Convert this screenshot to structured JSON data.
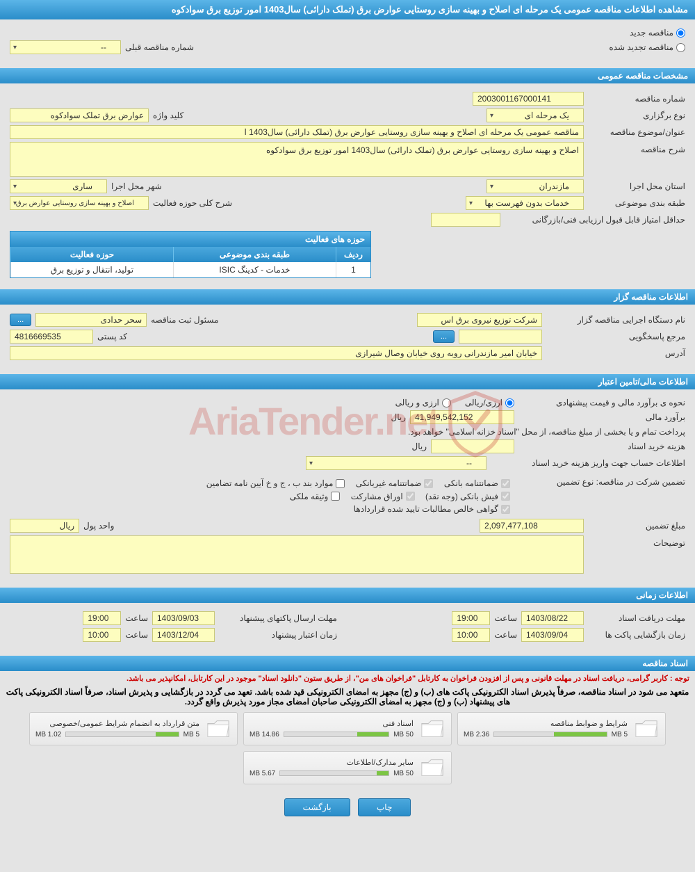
{
  "header": {
    "title": "مشاهده اطلاعات مناقصه عمومی یک مرحله ای اصلاح و بهینه سازی روستایی عوارض برق (تملک دارائی) سال1403 امور توزیع برق سوادکوه"
  },
  "status": {
    "new_label": "مناقصه جدید",
    "renewed_label": "مناقصه تجدید شده",
    "prev_number_label": "شماره مناقصه قبلی",
    "prev_number_value": "--"
  },
  "general": {
    "section_title": "مشخصات مناقصه عمومی",
    "number_label": "شماره مناقصه",
    "number_value": "2003001167000141",
    "type_label": "نوع برگزاری",
    "type_value": "یک مرحله ای",
    "keyword_label": "کلید واژه",
    "keyword_value": "عوارض برق تملک سوادکوه",
    "subject_label": "عنوان/موضوع مناقصه",
    "subject_value": "مناقصه عمومی یک مرحله ای اصلاح و بهینه سازی روستایی عوارض برق (تملک دارائی)  سال1403 ا",
    "desc_label": "شرح مناقصه",
    "desc_value": "اصلاح و بهینه سازی روستایی عوارض برق (تملک دارائی)  سال1403 امور توزیع برق سوادکوه",
    "province_label": "استان محل اجرا",
    "province_value": "مازندران",
    "city_label": "شهر محل اجرا",
    "city_value": "ساری",
    "category_label": "طبقه بندی موضوعی",
    "category_value": "خدمات بدون فهرست بها",
    "scope_label": "شرح کلی حوزه فعالیت",
    "scope_value": "اصلاح و بهینه سازی روستایی عوارض برق",
    "min_score_label": "حداقل امتیاز قابل قبول ارزیابی فنی/بازرگانی",
    "min_score_value": ""
  },
  "activity_table": {
    "title": "حوزه های فعالیت",
    "col_idx": "ردیف",
    "col_cat": "طبقه بندی موضوعی",
    "col_act": "حوزه فعالیت",
    "rows": [
      {
        "idx": "1",
        "cat": "خدمات - کدینگ ISIC",
        "act": "تولید، انتقال و توزیع برق"
      }
    ]
  },
  "tenderer": {
    "section_title": "اطلاعات مناقصه گزار",
    "org_label": "نام دستگاه اجرایی مناقصه گزار",
    "org_value": "شرکت توزیع نیروی برق اس",
    "officer_label": "مسئول ثبت مناقصه",
    "officer_value": "سحر حدادی",
    "more_btn": "...",
    "ref_label": "مرجع پاسخگویی",
    "ref_value": "",
    "postal_label": "کد پستی",
    "postal_value": "4816669535",
    "address_label": "آدرس",
    "address_value": "خیابان امیر مازندرانی روبه روی خیابان وصال شیرازی"
  },
  "financial": {
    "section_title": "اطلاعات مالی/تامین اعتبار",
    "method_label": "نحوه ی برآورد مالی و قیمت پیشنهادی",
    "opt_rial": "ارزی/ریالی",
    "opt_currency": "ارزی و ریالی",
    "estimate_label": "برآورد مالی",
    "estimate_value": "41,949,542,152",
    "rial": "ریال",
    "payment_note": "پرداخت تمام و یا بخشی از مبلغ مناقصه، از محل \"اسناد خزانه اسلامی\" خواهد بود.",
    "doc_cost_label": "هزینه خرید اسناد",
    "doc_cost_value": "",
    "account_label": "اطلاعات حساب جهت واریز هزینه خرید اسناد",
    "account_value": "--",
    "guarantee_label": "تضمین شرکت در مناقصه:   نوع تضمین",
    "chk_bank_guarantee": "ضمانتنامه بانکی",
    "chk_nonbank_guarantee": "ضمانتنامه غیربانکی",
    "chk_mortgage": "موارد بند ب ، ج و خ آیین نامه تضامین",
    "chk_cash": "فیش بانکی (وجه نقد)",
    "chk_bonds": "اوراق مشارکت",
    "chk_property": "وثیقه ملکی",
    "chk_cert": "گواهی خالص مطالبات تایید شده قراردادها",
    "guarantee_amount_label": "مبلغ تضمین",
    "guarantee_amount_value": "2,097,477,108",
    "currency_unit_label": "واحد پول",
    "currency_unit_value": "ریال",
    "remarks_label": "توضیحات",
    "remarks_value": ""
  },
  "timing": {
    "section_title": "اطلاعات زمانی",
    "receive_label": "مهلت دریافت اسناد",
    "receive_date": "1403/08/22",
    "receive_time": "19:00",
    "submit_label": "مهلت ارسال پاکتهای پیشنهاد",
    "submit_date": "1403/09/03",
    "submit_time": "19:00",
    "open_label": "زمان بازگشایی پاکت ها",
    "open_date": "1403/09/04",
    "open_time": "10:00",
    "validity_label": "زمان اعتبار پیشنهاد",
    "validity_date": "1403/12/04",
    "validity_time": "10:00",
    "time_label": "ساعت"
  },
  "documents": {
    "section_title": "اسناد مناقصه",
    "note_red": "توجه : کاربر گرامی، دریافت اسناد در مهلت قانونی و پس از افزودن فراخوان به کارتابل \"فراخوان های من\"، از طریق ستون \"دانلود اسناد\" موجود در این کارتابل، امکانپذیر می باشد.",
    "note_black": "متعهد می شود در اسناد مناقصه، صرفاً پذیرش اسناد الکترونیکی پاکت های (ب) و (ج) مجهز به امضای الکترونیکی قید شده باشد. تعهد می گردد در بازگشایی و پذیرش اسناد، صرفاً اسناد الکترونیکی پاکت های پیشنهاد (ب) و (ج) مجهز به امضای الکترونیکی صاحبان امضای مجاز مورد پذیرش واقع گردد.",
    "cards": [
      {
        "title": "شرایط و ضوابط مناقصه",
        "size": "2.36 MB",
        "max": "5 MB",
        "fill": 47
      },
      {
        "title": "اسناد فنی",
        "size": "14.86 MB",
        "max": "50 MB",
        "fill": 30
      },
      {
        "title": "متن قرارداد به انضمام شرایط عمومی/خصوصی",
        "size": "1.02 MB",
        "max": "5 MB",
        "fill": 20
      },
      {
        "title": "سایر مدارک/اطلاعات",
        "size": "5.67 MB",
        "max": "50 MB",
        "fill": 11
      }
    ]
  },
  "buttons": {
    "print": "چاپ",
    "back": "بازگشت"
  },
  "watermark": "AriaTender.net"
}
